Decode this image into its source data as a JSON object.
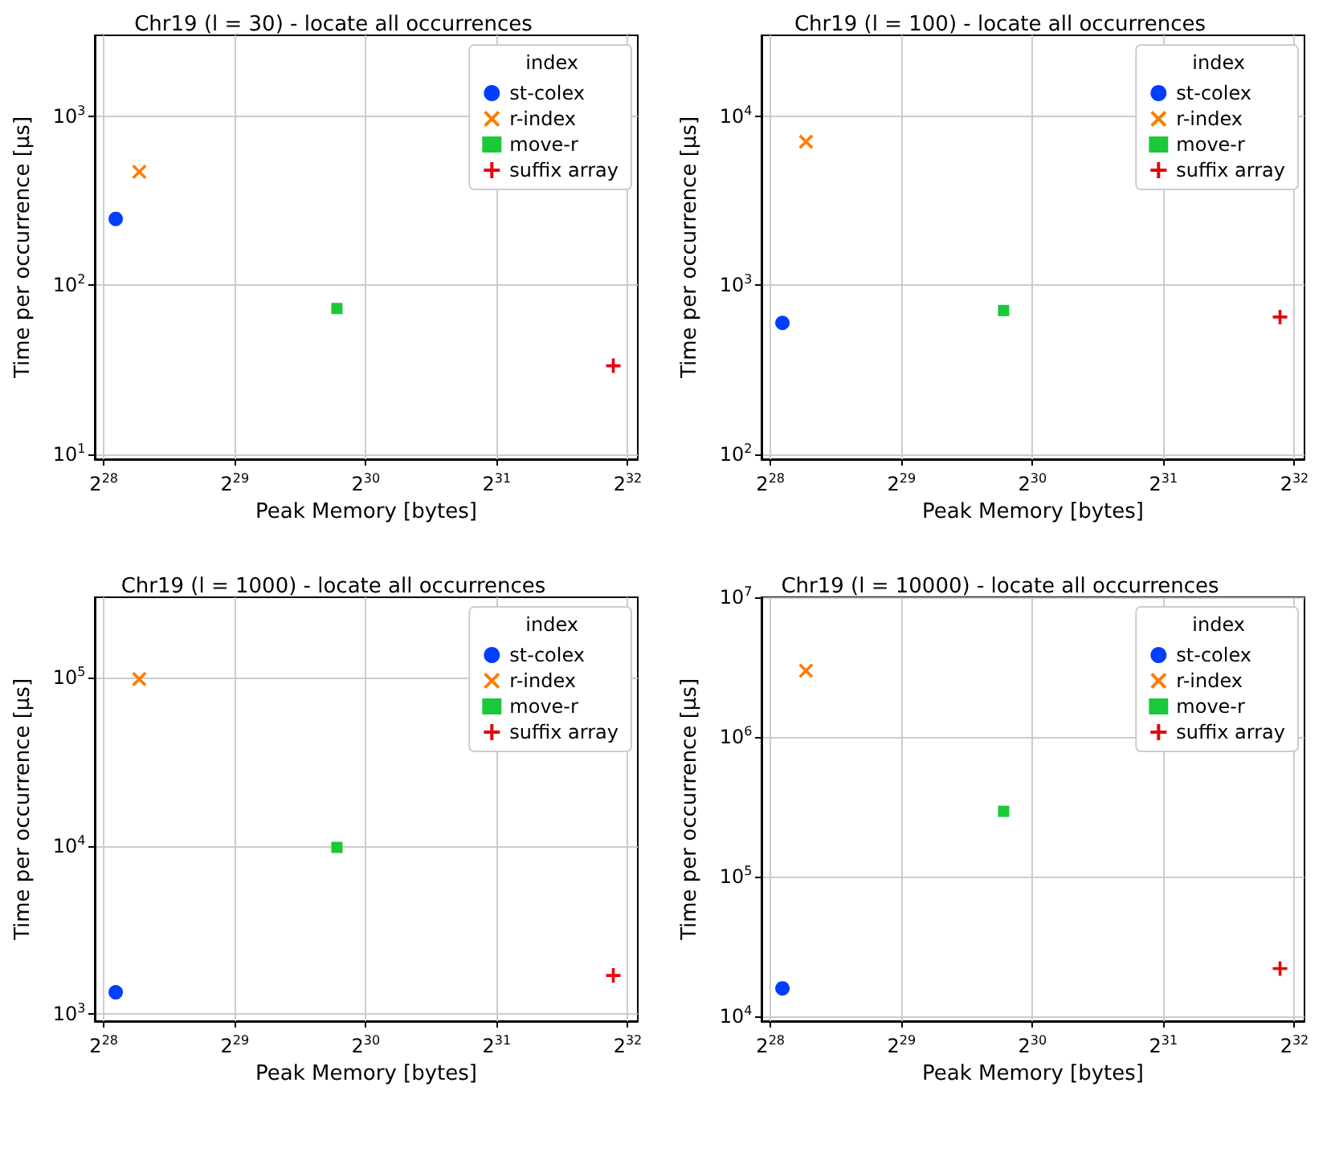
{
  "chart_data": [
    {
      "type": "scatter",
      "title": "Chr19 (l = 30) - locate all occurrences",
      "xlabel": "Peak Memory [bytes]",
      "ylabel": "Time per occurrence [μs]",
      "legend_title": "index",
      "legend": "top right",
      "grid": true,
      "log": "xy",
      "xlim": [
        256000000,
        4530000000
      ],
      "xticks": [
        {
          "value": 268435456,
          "label": "2$^{28}$"
        },
        {
          "value": 536870912,
          "label": "2$^{29}$"
        },
        {
          "value": 1073741824,
          "label": "2$^{30}$"
        },
        {
          "value": 2147483648,
          "label": "2$^{31}$"
        },
        {
          "value": 4294967296,
          "label": "2$^{32}$"
        }
      ],
      "ylim": [
        9.4,
        3000
      ],
      "yticks": [
        {
          "value": 10,
          "label": "10$^{1}$"
        },
        {
          "value": 100,
          "label": "10$^{2}$"
        },
        {
          "value": 1000,
          "label": "10$^{3}$"
        }
      ],
      "series": [
        {
          "name": "st-colex",
          "color": "#023eff",
          "marker": "circle",
          "x": [
            286000000
          ],
          "values": [
            247
          ]
        },
        {
          "name": "r-index",
          "color": "#ff7c00",
          "marker": "x",
          "x": [
            324000000
          ],
          "values": [
            469
          ]
        },
        {
          "name": "move-r",
          "color": "#1ac938",
          "marker": "square",
          "x": [
            922000000
          ],
          "values": [
            73
          ]
        },
        {
          "name": "suffix array",
          "color": "#e8000b",
          "marker": "cross",
          "x": [
            3980000000
          ],
          "values": [
            33.5
          ]
        }
      ]
    },
    {
      "type": "scatter",
      "title": "Chr19 (l = 100) - locate all occurrences",
      "xlabel": "Peak Memory [bytes]",
      "ylabel": "Time per occurrence [μs]",
      "legend_title": "index",
      "legend": "top right",
      "grid": true,
      "log": "xy",
      "xlim": [
        256000000,
        4530000000
      ],
      "xticks": [
        {
          "value": 268435456,
          "label": "2$^{28}$"
        },
        {
          "value": 536870912,
          "label": "2$^{29}$"
        },
        {
          "value": 1073741824,
          "label": "2$^{30}$"
        },
        {
          "value": 2147483648,
          "label": "2$^{31}$"
        },
        {
          "value": 4294967296,
          "label": "2$^{32}$"
        }
      ],
      "ylim": [
        94,
        30000
      ],
      "yticks": [
        {
          "value": 100,
          "label": "10$^{2}$"
        },
        {
          "value": 1000,
          "label": "10$^{3}$"
        },
        {
          "value": 10000,
          "label": "10$^{4}$"
        }
      ],
      "series": [
        {
          "name": "st-colex",
          "color": "#023eff",
          "marker": "circle",
          "x": [
            286000000
          ],
          "values": [
            600
          ]
        },
        {
          "name": "r-index",
          "color": "#ff7c00",
          "marker": "x",
          "x": [
            324000000
          ],
          "values": [
            7050
          ]
        },
        {
          "name": "move-r",
          "color": "#1ac938",
          "marker": "square",
          "x": [
            922000000
          ],
          "values": [
            710
          ]
        },
        {
          "name": "suffix array",
          "color": "#e8000b",
          "marker": "cross",
          "x": [
            3980000000
          ],
          "values": [
            650
          ]
        }
      ]
    },
    {
      "type": "scatter",
      "title": "Chr19 (l = 1000) - locate all occurrences",
      "xlabel": "Peak Memory [bytes]",
      "ylabel": "Time per occurrence [μs]",
      "legend_title": "index",
      "legend": "top right",
      "grid": true,
      "log": "xy",
      "xlim": [
        256000000,
        4530000000
      ],
      "xticks": [
        {
          "value": 268435456,
          "label": "2$^{28}$"
        },
        {
          "value": 536870912,
          "label": "2$^{29}$"
        },
        {
          "value": 1073741824,
          "label": "2$^{30}$"
        },
        {
          "value": 2147483648,
          "label": "2$^{31}$"
        },
        {
          "value": 4294967296,
          "label": "2$^{32}$"
        }
      ],
      "ylim": [
        910,
        300000
      ],
      "yticks": [
        {
          "value": 1000,
          "label": "10$^{3}$"
        },
        {
          "value": 10000,
          "label": "10$^{4}$"
        },
        {
          "value": 100000,
          "label": "10$^{5}$"
        }
      ],
      "series": [
        {
          "name": "st-colex",
          "color": "#023eff",
          "marker": "circle",
          "x": [
            286000000
          ],
          "values": [
            1350
          ]
        },
        {
          "name": "r-index",
          "color": "#ff7c00",
          "marker": "x",
          "x": [
            324000000
          ],
          "values": [
            98000
          ]
        },
        {
          "name": "move-r",
          "color": "#1ac938",
          "marker": "square",
          "x": [
            922000000
          ],
          "values": [
            9800
          ]
        },
        {
          "name": "suffix array",
          "color": "#e8000b",
          "marker": "cross",
          "x": [
            3980000000
          ],
          "values": [
            1700
          ]
        }
      ]
    },
    {
      "type": "scatter",
      "title": "Chr19 (l = 10000) - locate all occurrences",
      "xlabel": "Peak Memory [bytes]",
      "ylabel": "Time per occurrence [μs]",
      "legend_title": "index",
      "legend": "top right",
      "grid": true,
      "log": "xy",
      "xlim": [
        256000000,
        4530000000
      ],
      "xticks": [
        {
          "value": 268435456,
          "label": "2$^{28}$"
        },
        {
          "value": 536870912,
          "label": "2$^{29}$"
        },
        {
          "value": 1073741824,
          "label": "2$^{30}$"
        },
        {
          "value": 2147483648,
          "label": "2$^{31}$"
        },
        {
          "value": 4294967296,
          "label": "2$^{32}$"
        }
      ],
      "ylim": [
        9200,
        10000000
      ],
      "yticks": [
        {
          "value": 10000,
          "label": "10$^{4}$"
        },
        {
          "value": 100000,
          "label": "10$^{5}$"
        },
        {
          "value": 1000000,
          "label": "10$^{6}$"
        },
        {
          "value": 10000000,
          "label": "10$^{7}$"
        }
      ],
      "series": [
        {
          "name": "st-colex",
          "color": "#023eff",
          "marker": "circle",
          "x": [
            286000000
          ],
          "values": [
            15800
          ]
        },
        {
          "name": "r-index",
          "color": "#ff7c00",
          "marker": "x",
          "x": [
            324000000
          ],
          "values": [
            2980000
          ]
        },
        {
          "name": "move-r",
          "color": "#1ac938",
          "marker": "square",
          "x": [
            922000000
          ],
          "values": [
            293000
          ]
        },
        {
          "name": "suffix array",
          "color": "#e8000b",
          "marker": "cross",
          "x": [
            3980000000
          ],
          "values": [
            21900
          ]
        }
      ]
    }
  ]
}
